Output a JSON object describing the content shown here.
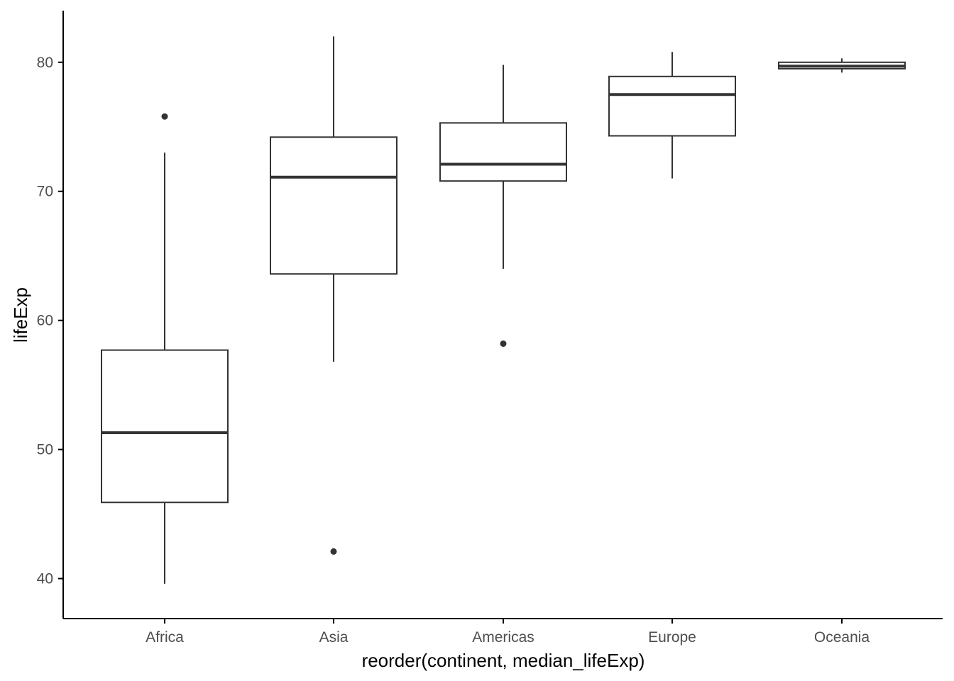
{
  "chart_data": {
    "type": "boxplot",
    "title": "",
    "xlabel": "reorder(continent, median_lifeExp)",
    "ylabel": "lifeExp",
    "ylim": [
      36.9,
      84
    ],
    "yticks": [
      40,
      50,
      60,
      70,
      80
    ],
    "grid": false,
    "legend": "none",
    "colors": {
      "box_stroke": "#333333",
      "box_fill": "#ffffff",
      "axis": "#000000",
      "tick_label": "#4d4d4d"
    },
    "categories": [
      "Africa",
      "Asia",
      "Americas",
      "Europe",
      "Oceania"
    ],
    "boxes": [
      {
        "category": "Africa",
        "whisker_low": 39.6,
        "q1": 45.9,
        "median": 51.3,
        "q3": 57.7,
        "whisker_high": 73.0,
        "outliers": [
          75.8
        ]
      },
      {
        "category": "Asia",
        "whisker_low": 56.8,
        "q1": 63.6,
        "median": 71.1,
        "q3": 74.2,
        "whisker_high": 82.0,
        "outliers": [
          42.1
        ]
      },
      {
        "category": "Americas",
        "whisker_low": 64.0,
        "q1": 70.8,
        "median": 72.1,
        "q3": 75.3,
        "whisker_high": 79.8,
        "outliers": [
          58.2
        ]
      },
      {
        "category": "Europe",
        "whisker_low": 71.0,
        "q1": 74.3,
        "median": 77.5,
        "q3": 78.9,
        "whisker_high": 80.8,
        "outliers": []
      },
      {
        "category": "Oceania",
        "whisker_low": 79.2,
        "q1": 79.5,
        "median": 79.7,
        "q3": 80.0,
        "whisker_high": 80.3,
        "outliers": []
      }
    ]
  }
}
